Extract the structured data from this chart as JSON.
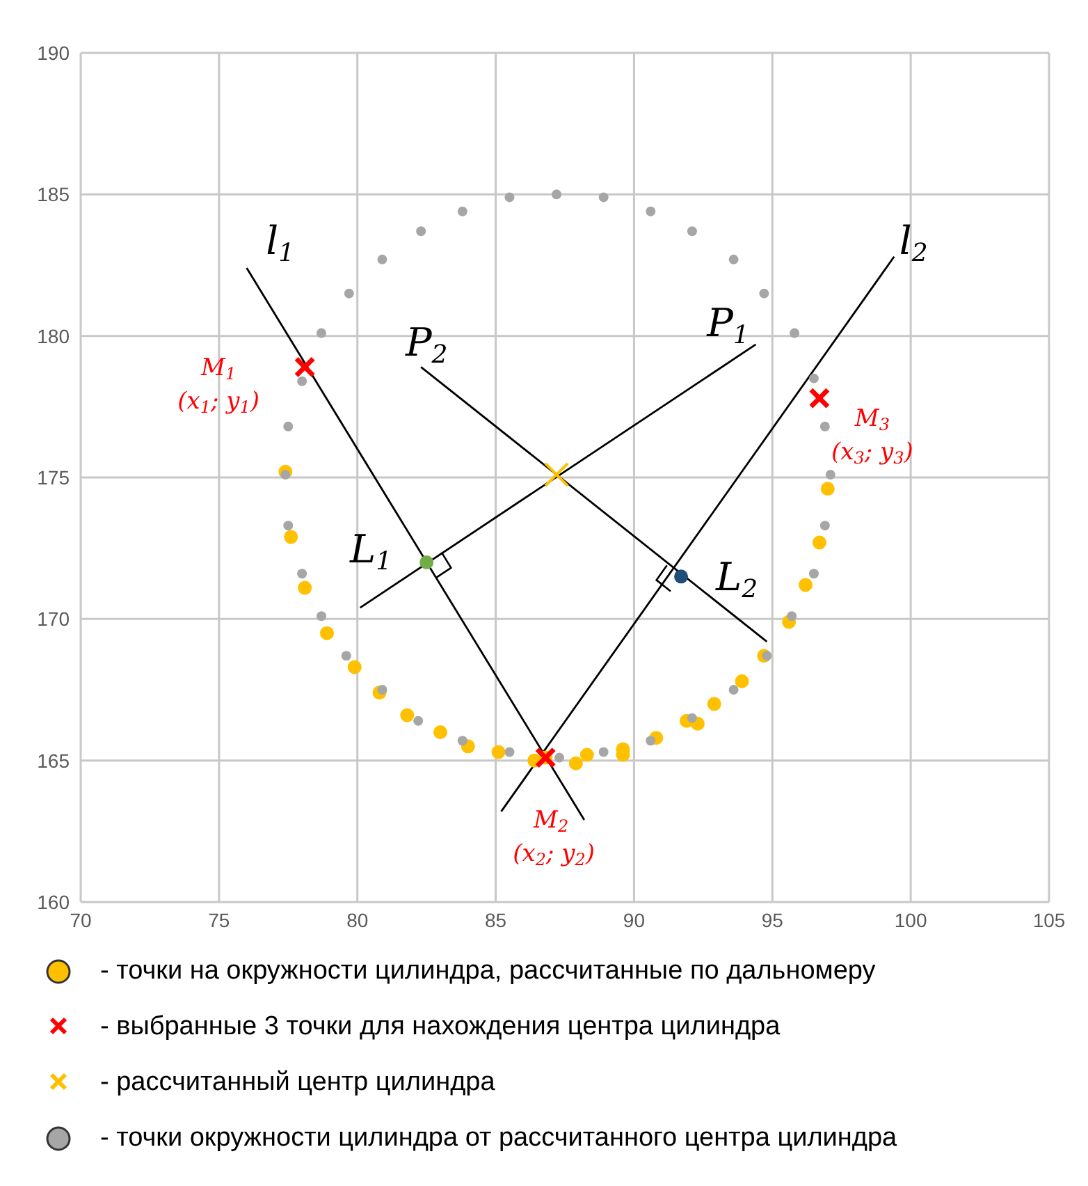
{
  "chart_data": {
    "type": "scatter",
    "xlim": [
      70,
      105
    ],
    "ylim": [
      160,
      190
    ],
    "xticks": [
      70,
      75,
      80,
      85,
      90,
      95,
      100,
      105
    ],
    "yticks": [
      160,
      165,
      170,
      175,
      180,
      185,
      190
    ],
    "grid": true,
    "legend": "bottom",
    "series": [
      {
        "name": "- точки на окружности цилиндра, рассчитанные по дальномеру",
        "color": "#ffc000",
        "marker": "circle",
        "x": [
          77.4,
          77.6,
          78.1,
          78.9,
          79.9,
          80.8,
          81.8,
          83.0,
          84.0,
          85.1,
          86.4,
          86.8,
          87.9,
          88.3,
          89.6,
          89.6,
          90.8,
          91.9,
          92.3,
          92.9,
          93.9,
          94.7,
          95.6,
          96.2,
          96.7,
          97.0
        ],
        "values": [
          175.2,
          172.9,
          171.1,
          169.5,
          168.3,
          167.4,
          166.6,
          166.0,
          165.5,
          165.3,
          165.0,
          165.1,
          164.9,
          165.2,
          165.4,
          165.2,
          165.8,
          166.4,
          166.3,
          167.0,
          167.8,
          168.7,
          169.9,
          171.2,
          172.7,
          174.6
        ]
      },
      {
        "name": "- выбранные 3 точки для нахождения центра цилиндра",
        "color": "#ff0000",
        "marker": "cross",
        "x": [
          78.1,
          86.8,
          96.7
        ],
        "values": [
          178.9,
          165.1,
          177.8
        ]
      },
      {
        "name": "- рассчитанный центр цилиндра",
        "color": "#ffc000",
        "marker": "cross",
        "x": [
          87.2
        ],
        "values": [
          175.1
        ]
      },
      {
        "name": "- точки окружности цилиндра от рассчитанного центра цилиндра",
        "color": "#a6a6a6",
        "marker": "circle",
        "x": [
          87.2,
          88.9,
          90.6,
          92.1,
          93.6,
          94.7,
          95.8,
          96.5,
          96.9,
          97.1,
          96.9,
          96.5,
          95.7,
          94.8,
          93.6,
          92.1,
          90.6,
          88.9,
          87.3,
          85.5,
          83.8,
          82.2,
          80.9,
          79.6,
          78.7,
          78.0,
          77.5,
          77.4,
          77.5,
          78.0,
          78.7,
          79.7,
          80.9,
          82.3,
          83.8,
          85.5
        ],
        "values": [
          185.0,
          184.9,
          184.4,
          183.7,
          182.7,
          181.5,
          180.1,
          178.5,
          176.8,
          175.1,
          173.3,
          171.6,
          170.1,
          168.7,
          167.5,
          166.5,
          165.7,
          165.3,
          165.1,
          165.3,
          165.7,
          166.4,
          167.5,
          168.7,
          170.1,
          171.6,
          173.3,
          175.1,
          176.8,
          178.4,
          180.1,
          181.5,
          182.7,
          183.7,
          184.4,
          184.9
        ]
      },
      {
        "color": "#70ad47",
        "marker": "circle",
        "x": [
          82.5
        ],
        "values": [
          172.0
        ]
      },
      {
        "color": "#1f4e79",
        "marker": "circle",
        "x": [
          91.7
        ],
        "values": [
          171.5
        ]
      },
      {
        "type": "line",
        "color": "#000000",
        "marker": "none",
        "x": [
          76.0,
          88.2
        ],
        "values": [
          182.4,
          162.9
        ]
      },
      {
        "type": "line",
        "color": "#000000",
        "marker": "none",
        "x": [
          99.4,
          85.2
        ],
        "values": [
          182.8,
          163.2
        ]
      },
      {
        "type": "line",
        "color": "#000000",
        "marker": "none",
        "x": [
          94.4,
          80.1
        ],
        "values": [
          179.7,
          170.4
        ]
      },
      {
        "type": "line",
        "color": "#000000",
        "marker": "none",
        "x": [
          82.3,
          94.8
        ],
        "values": [
          178.9,
          169.2
        ]
      }
    ],
    "annotations": [
      {
        "text": "l$_{1}$",
        "x": 76.0,
        "y": 182.4
      },
      {
        "text": "l$_{2}$",
        "x": 99.4,
        "y": 182.8
      },
      {
        "text": "P$_{1}$",
        "x": 94.4,
        "y": 179.7
      },
      {
        "text": "P$_{2}$",
        "x": 82.3,
        "y": 178.9
      },
      {
        "text": "L$_{1}$",
        "x": 82.5,
        "y": 172.0
      },
      {
        "text": "L$_{2}$",
        "x": 91.7,
        "y": 171.5
      },
      {
        "text": "M$_{1}$",
        "x": 78.1,
        "y": 178.9
      },
      "(x$_{1}$; y$_{1}$)",
      {
        "text": "M$_{2}$",
        "x": 86.8,
        "y": 165.1
      },
      "(x$_{2}$; y$_{2}$)",
      {
        "text": "M$_{3}$",
        "x": 96.7,
        "y": 177.8
      },
      "(x$_{3}$; y$_{3}$)"
    ]
  }
}
